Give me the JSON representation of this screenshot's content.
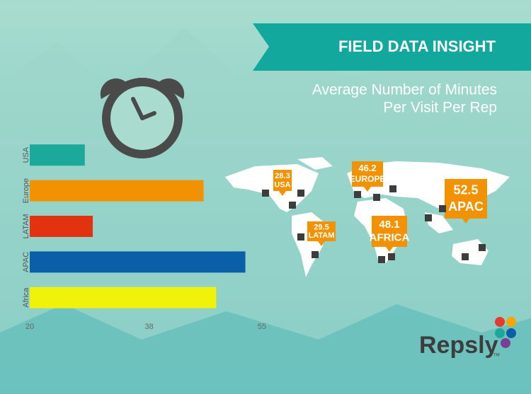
{
  "chart_data": {
    "type": "bar",
    "orientation": "horizontal",
    "banner": "FIELD DATA INSIGHT",
    "title": [
      "Average Number of Minutes",
      "Per Visit Per Rep"
    ],
    "categories": [
      "USA",
      "Europe",
      "LATAM",
      "APAC",
      "Africa"
    ],
    "values": [
      28.3,
      46.2,
      29.5,
      52.5,
      48.1
    ],
    "colors": [
      "#1aa99a",
      "#f39200",
      "#e2320f",
      "#0a5fa8",
      "#f1f20a"
    ],
    "map_labels": [
      "USA",
      "EUROPE",
      "LATAM",
      "APAC",
      "AFRICA"
    ],
    "label_color": "#f39200",
    "xlim": [
      20,
      55
    ],
    "xticks": [
      20,
      38,
      55
    ],
    "brand": "Repsly",
    "trademark": "TM"
  }
}
